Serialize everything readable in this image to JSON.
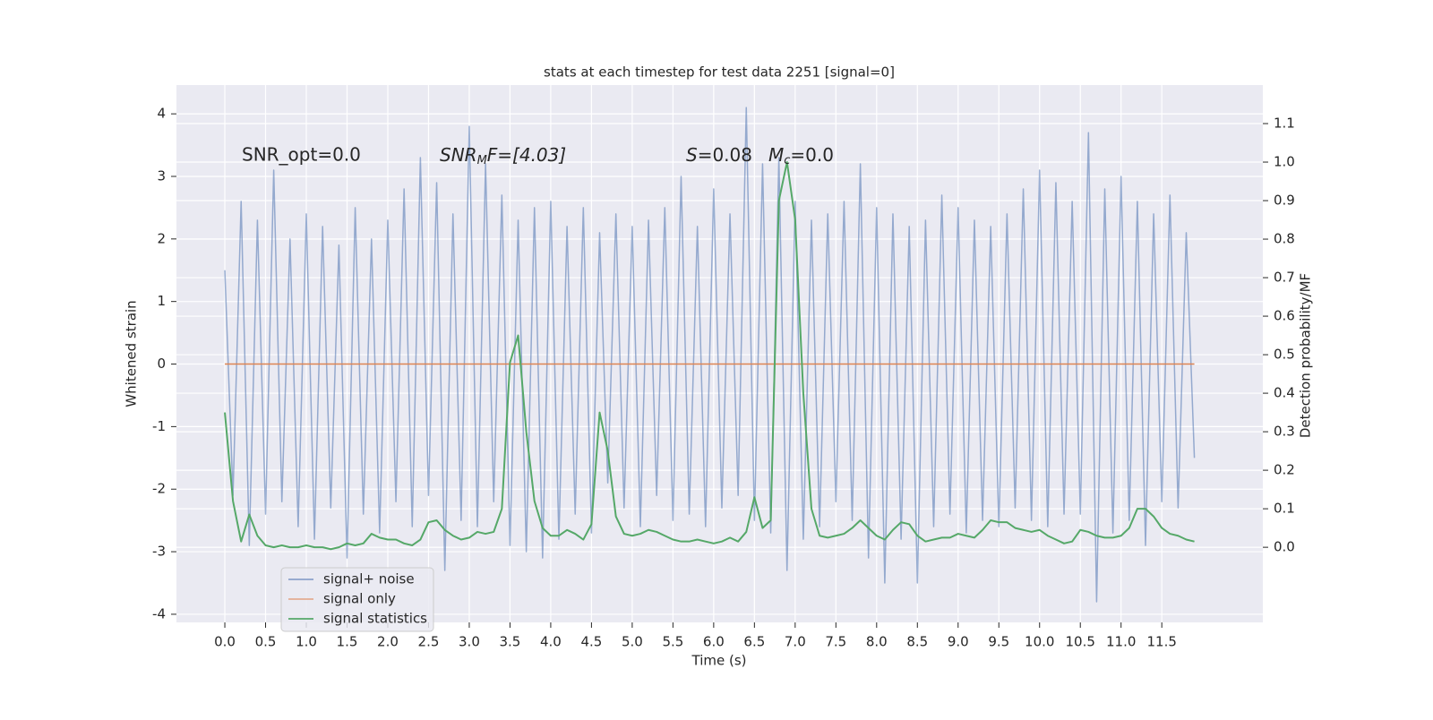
{
  "chart_data": {
    "type": "line",
    "title": "stats at each timestep for test data 2251 [signal=0]",
    "xlabel": "Time (s)",
    "ylabel": "Whitened strain",
    "y2label": "Detection probability/MF",
    "annotations": {
      "snr_opt": "SNR_opt=0.0",
      "snr_mf": [
        "SNR",
        "M",
        "F=[4.03]"
      ],
      "s": [
        "S",
        "=0.08"
      ],
      "mc": [
        "M",
        "c",
        "=0.0"
      ]
    },
    "x": [
      0,
      0.1,
      0.2,
      0.3,
      0.4,
      0.5,
      0.6,
      0.7,
      0.8,
      0.9,
      1,
      1.1,
      1.2,
      1.3,
      1.4,
      1.5,
      1.6,
      1.7,
      1.8,
      1.9,
      2,
      2.1,
      2.2,
      2.3,
      2.4,
      2.5,
      2.6,
      2.7,
      2.8,
      2.9,
      3,
      3.1,
      3.2,
      3.3,
      3.4,
      3.5,
      3.6,
      3.7,
      3.8,
      3.9,
      4,
      4.1,
      4.2,
      4.3,
      4.4,
      4.5,
      4.6,
      4.7,
      4.8,
      4.9,
      5,
      5.1,
      5.2,
      5.3,
      5.4,
      5.5,
      5.6,
      5.7,
      5.8,
      5.9,
      6,
      6.1,
      6.2,
      6.3,
      6.4,
      6.5,
      6.6,
      6.7,
      6.8,
      6.9,
      7,
      7.1,
      7.2,
      7.3,
      7.4,
      7.5,
      7.6,
      7.7,
      7.8,
      7.9,
      8,
      8.1,
      8.2,
      8.3,
      8.4,
      8.5,
      8.6,
      8.7,
      8.8,
      8.9,
      9,
      9.1,
      9.2,
      9.3,
      9.4,
      9.5,
      9.6,
      9.7,
      9.8,
      9.9,
      10,
      10.1,
      10.2,
      10.3,
      10.4,
      10.5,
      10.6,
      10.7,
      10.8,
      10.9,
      11,
      11.1,
      11.2,
      11.3,
      11.4,
      11.5,
      11.6,
      11.7,
      11.8,
      11.9
    ],
    "series": [
      {
        "name": "signal+ noise",
        "color": "#4c72b0",
        "values": [
          1.5,
          -2.1,
          2.6,
          -2.9,
          2.3,
          -2.4,
          3.1,
          -2.2,
          2.0,
          -2.6,
          2.4,
          -2.8,
          2.2,
          -2.3,
          1.9,
          -3.1,
          2.5,
          -2.4,
          2.0,
          -2.7,
          2.3,
          -2.2,
          2.8,
          -2.6,
          3.3,
          -2.1,
          2.9,
          -3.3,
          2.4,
          -2.5,
          3.8,
          -2.6,
          3.2,
          -2.2,
          2.7,
          -2.9,
          2.3,
          -3.0,
          2.5,
          -3.1,
          2.6,
          -2.8,
          2.2,
          -2.4,
          2.5,
          -2.7,
          2.1,
          -1.9,
          2.4,
          -2.3,
          2.2,
          -2.6,
          2.3,
          -2.1,
          2.5,
          -2.5,
          3.0,
          -2.4,
          2.2,
          -2.6,
          2.8,
          -2.3,
          2.4,
          -2.1,
          4.1,
          -2.5,
          3.2,
          -2.7,
          3.3,
          -3.3,
          2.6,
          -2.8,
          2.3,
          -2.6,
          2.4,
          -2.2,
          2.6,
          -2.5,
          3.2,
          -3.1,
          2.5,
          -3.5,
          2.4,
          -2.8,
          2.2,
          -3.5,
          2.3,
          -2.6,
          2.7,
          -2.4,
          2.5,
          -2.7,
          2.3,
          -2.5,
          2.2,
          -2.6,
          2.4,
          -2.3,
          2.8,
          -2.5,
          3.1,
          -2.6,
          2.9,
          -2.4,
          2.6,
          -2.4,
          3.7,
          -3.8,
          2.8,
          -2.7,
          3.0,
          -2.5,
          2.6,
          -2.9,
          2.4,
          -2.2,
          2.7,
          -2.3,
          2.1,
          -1.5
        ]
      },
      {
        "name": "signal only",
        "color": "#dd8452",
        "values": [
          0,
          0,
          0,
          0,
          0,
          0,
          0,
          0,
          0,
          0,
          0,
          0,
          0,
          0,
          0,
          0,
          0,
          0,
          0,
          0,
          0,
          0,
          0,
          0,
          0,
          0,
          0,
          0,
          0,
          0,
          0,
          0,
          0,
          0,
          0,
          0,
          0,
          0,
          0,
          0,
          0,
          0,
          0,
          0,
          0,
          0,
          0,
          0,
          0,
          0,
          0,
          0,
          0,
          0,
          0,
          0,
          0,
          0,
          0,
          0,
          0,
          0,
          0,
          0,
          0,
          0,
          0,
          0,
          0,
          0,
          0,
          0,
          0,
          0,
          0,
          0,
          0,
          0,
          0,
          0,
          0,
          0,
          0,
          0,
          0,
          0,
          0,
          0,
          0,
          0,
          0,
          0,
          0,
          0,
          0,
          0,
          0,
          0,
          0,
          0,
          0,
          0,
          0,
          0,
          0,
          0,
          0,
          0,
          0,
          0,
          0,
          0,
          0,
          0,
          0,
          0,
          0,
          0,
          0,
          0
        ]
      },
      {
        "name": "signal statistics",
        "color": "#55a868",
        "axis": "y2",
        "values": [
          0.35,
          0.12,
          0.015,
          0.085,
          0.03,
          0.005,
          0.0,
          0.005,
          0.0,
          0.0,
          0.005,
          0.0,
          0.0,
          -0.005,
          0.0,
          0.01,
          0.005,
          0.01,
          0.035,
          0.025,
          0.02,
          0.02,
          0.01,
          0.005,
          0.02,
          0.065,
          0.07,
          0.045,
          0.03,
          0.02,
          0.025,
          0.04,
          0.035,
          0.04,
          0.1,
          0.48,
          0.55,
          0.3,
          0.12,
          0.05,
          0.03,
          0.03,
          0.045,
          0.035,
          0.02,
          0.06,
          0.35,
          0.25,
          0.08,
          0.035,
          0.03,
          0.035,
          0.045,
          0.04,
          0.03,
          0.02,
          0.015,
          0.015,
          0.02,
          0.015,
          0.01,
          0.015,
          0.025,
          0.015,
          0.04,
          0.13,
          0.05,
          0.07,
          0.9,
          1.0,
          0.85,
          0.4,
          0.1,
          0.03,
          0.025,
          0.03,
          0.035,
          0.05,
          0.07,
          0.05,
          0.03,
          0.02,
          0.045,
          0.065,
          0.06,
          0.03,
          0.015,
          0.02,
          0.025,
          0.025,
          0.035,
          0.03,
          0.025,
          0.045,
          0.07,
          0.065,
          0.065,
          0.05,
          0.045,
          0.04,
          0.045,
          0.03,
          0.02,
          0.01,
          0.015,
          0.045,
          0.04,
          0.03,
          0.025,
          0.025,
          0.03,
          0.05,
          0.1,
          0.1,
          0.08,
          0.05,
          0.035,
          0.03,
          0.02,
          0.015
        ]
      }
    ],
    "xlim": [
      -0.594,
      12.74
    ],
    "xticks": [
      {
        "value": 0,
        "label": "0.0"
      },
      0.5,
      {
        "value": 1,
        "label": "1.0"
      },
      1.5,
      {
        "value": 2,
        "label": "2.0"
      },
      2.5,
      {
        "value": 3,
        "label": "3.0"
      },
      3.5,
      {
        "value": 4,
        "label": "4.0"
      },
      4.5,
      {
        "value": 5,
        "label": "5.0"
      },
      5.5,
      {
        "value": 6,
        "label": "6.0"
      },
      6.5,
      {
        "value": 7,
        "label": "7.0"
      },
      7.5,
      {
        "value": 8,
        "label": "8.0"
      },
      8.5,
      {
        "value": 9,
        "label": "9.0"
      },
      9.5,
      {
        "value": 10,
        "label": "10.0"
      },
      10.5,
      {
        "value": 11,
        "label": "11.0"
      },
      11.5
    ],
    "ylim": [
      -4.13,
      4.46
    ],
    "yticks": [
      -4,
      -3,
      -2,
      -1,
      0,
      1,
      2,
      3,
      4
    ],
    "y2lim": [
      -0.195,
      1.2
    ],
    "y2ticks": [
      {
        "value": 0,
        "label": "0.0"
      },
      0.1,
      0.2,
      0.3,
      0.4,
      0.5,
      0.6,
      0.7,
      0.8,
      0.9,
      {
        "value": 1,
        "label": "1.0"
      },
      1.1
    ],
    "grid": true,
    "legend_loc": "lower left"
  }
}
